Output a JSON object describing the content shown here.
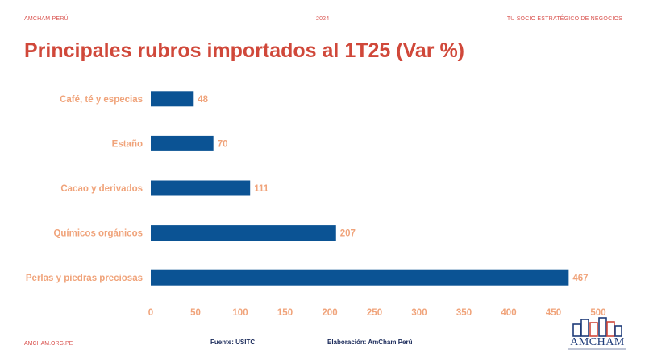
{
  "header": {
    "left": "AMCHAM PERÚ",
    "center": "2024",
    "right": "TU SOCIO ESTRATÉGICO  DE NEGOCIOS"
  },
  "title": "Principales rubros importados al 1T25 (Var %)",
  "chart_data": {
    "type": "bar",
    "orientation": "horizontal",
    "categories": [
      "Café, té y especias",
      "Estaño",
      "Cacao y derivados",
      "Químicos orgánicos",
      "Perlas y piedras preciosas"
    ],
    "values": [
      48,
      70,
      111,
      207,
      467
    ],
    "xlim": [
      0,
      500
    ],
    "xticks": [
      0,
      50,
      100,
      150,
      200,
      250,
      300,
      350,
      400,
      450,
      500
    ],
    "grid": false,
    "bar_color": "#0b5394",
    "label_color": "#f0a37a"
  },
  "footer": {
    "site": "AMCHAM.ORG.PE",
    "source": "Fuente: USITC",
    "credit": "Elaboración: AmCham  Perú"
  },
  "logo": {
    "text": "AMCHAM"
  }
}
